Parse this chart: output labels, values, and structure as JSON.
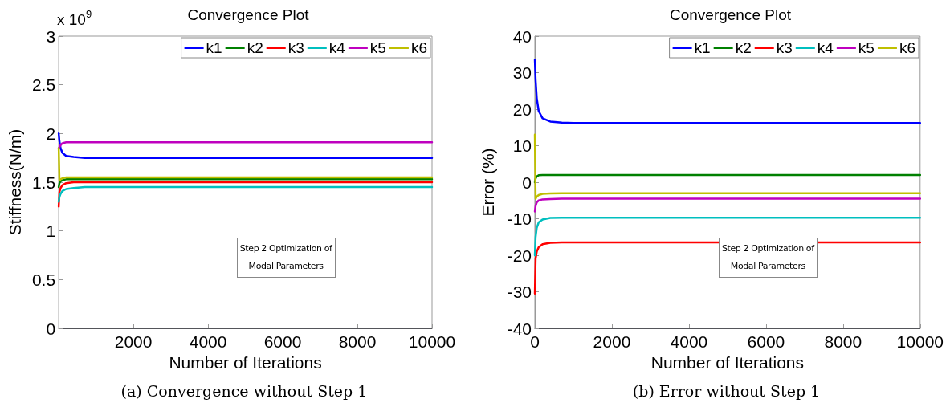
{
  "chart_data": [
    {
      "type": "line",
      "title": "Convergence Plot",
      "xlabel": "Number of Iterations",
      "ylabel": "Stiffness(N/m)",
      "x": [
        1,
        20,
        50,
        100,
        200,
        400,
        700,
        1000,
        3000,
        10000
      ],
      "series": [
        {
          "name": "k1",
          "color": "#0000ff",
          "values": [
            2.0,
            1.92,
            1.85,
            1.8,
            1.77,
            1.76,
            1.75,
            1.75,
            1.75,
            1.75
          ]
        },
        {
          "name": "k2",
          "color": "#008000",
          "values": [
            1.45,
            1.49,
            1.51,
            1.52,
            1.53,
            1.53,
            1.53,
            1.53,
            1.53,
            1.53
          ]
        },
        {
          "name": "k3",
          "color": "#ff0000",
          "values": [
            1.25,
            1.4,
            1.44,
            1.47,
            1.49,
            1.5,
            1.5,
            1.5,
            1.5,
            1.5
          ]
        },
        {
          "name": "k4",
          "color": "#00bfbf",
          "values": [
            1.3,
            1.35,
            1.38,
            1.41,
            1.43,
            1.44,
            1.45,
            1.45,
            1.45,
            1.45
          ]
        },
        {
          "name": "k5",
          "color": "#bf00bf",
          "values": [
            1.85,
            1.86,
            1.88,
            1.9,
            1.91,
            1.91,
            1.91,
            1.91,
            1.91,
            1.91
          ]
        },
        {
          "name": "k6",
          "color": "#bfbf00",
          "values": [
            1.85,
            1.52,
            1.53,
            1.54,
            1.55,
            1.55,
            1.55,
            1.55,
            1.55,
            1.55
          ]
        }
      ],
      "xlim": [
        0,
        10000
      ],
      "xticks": [
        2000,
        4000,
        6000,
        8000,
        10000
      ],
      "ylim": [
        0,
        3
      ],
      "yticks": [
        0,
        0.5,
        1,
        1.5,
        2,
        2.5,
        3
      ],
      "annotations": [
        "Step 2 Optimization of Modal Parameters",
        "(a) Convergence without Step 1",
        "x 10$^{9}$"
      ],
      "legend": "top right",
      "grid": false,
      "marker": "none",
      "line_style": "solid"
    },
    {
      "type": "line",
      "title": "Convergence Plot",
      "xlabel": "Number of Iterations",
      "ylabel": "Error (%)",
      "x": [
        1,
        20,
        50,
        100,
        200,
        400,
        700,
        1000,
        3000,
        10000
      ],
      "series": [
        {
          "name": "k1",
          "color": "#0000ff",
          "values": [
            33.5,
            28,
            23,
            19.5,
            17.5,
            16.6,
            16.3,
            16.2,
            16.2,
            16.2
          ]
        },
        {
          "name": "k2",
          "color": "#008000",
          "values": [
            0,
            1,
            1.6,
            1.9,
            2,
            2,
            2,
            2,
            2,
            2
          ]
        },
        {
          "name": "k3",
          "color": "#ff0000",
          "values": [
            -30.5,
            -21,
            -19,
            -17.8,
            -17,
            -16.6,
            -16.5,
            -16.5,
            -16.5,
            -16.5
          ]
        },
        {
          "name": "k4",
          "color": "#00bfbf",
          "values": [
            -20,
            -15,
            -12.5,
            -11,
            -10.2,
            -9.8,
            -9.7,
            -9.7,
            -9.7,
            -9.7
          ]
        },
        {
          "name": "k5",
          "color": "#bf00bf",
          "values": [
            -8,
            -6.5,
            -5.5,
            -5,
            -4.7,
            -4.6,
            -4.5,
            -4.5,
            -4.5,
            -4.5
          ]
        },
        {
          "name": "k6",
          "color": "#bfbf00",
          "values": [
            13,
            -4.5,
            -4,
            -3.5,
            -3.2,
            -3.1,
            -3,
            -3,
            -3,
            -3
          ]
        }
      ],
      "xlim": [
        0,
        10000
      ],
      "xticks": [
        0,
        2000,
        4000,
        6000,
        8000,
        10000
      ],
      "ylim": [
        -40,
        40
      ],
      "yticks": [
        -40,
        -30,
        -20,
        -10,
        0,
        10,
        20,
        30,
        40
      ],
      "annotations": [
        "Step 2 Optimization of Modal Parameters",
        "(b) Error without Step 1"
      ],
      "legend": "top right",
      "grid": false,
      "marker": "none",
      "line_style": "solid"
    }
  ]
}
